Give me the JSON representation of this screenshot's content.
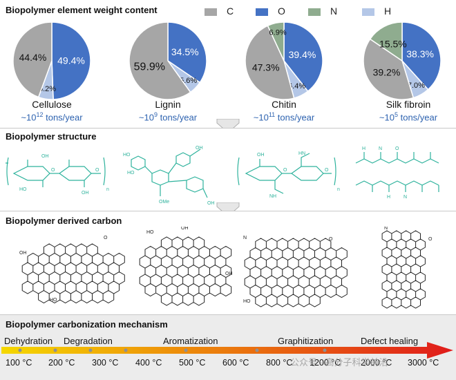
{
  "panel1": {
    "title": "Biopolymer element weight content",
    "legend": [
      {
        "label": "C",
        "color": "#a6a6a6"
      },
      {
        "label": "O",
        "color": "#4472c4"
      },
      {
        "label": "N",
        "color": "#8fac8f"
      },
      {
        "label": "H",
        "color": "#b4c7e7"
      }
    ]
  },
  "chart_data": {
    "type": "pie",
    "title": "Biopolymer element weight content",
    "legend": [
      "C",
      "O",
      "N",
      "H"
    ],
    "charts": [
      {
        "name": "Cellulose",
        "rate_prefix": "~10",
        "rate_exp": "12",
        "rate_suffix": " tons/year",
        "slices": [
          {
            "label": "O",
            "value": 49.4,
            "text": "49.4%"
          },
          {
            "label": "H",
            "value": 6.2,
            "text": "6.2%"
          },
          {
            "label": "C",
            "value": 44.4,
            "text": "44.4%"
          }
        ]
      },
      {
        "name": "Lignin",
        "rate_prefix": "~10",
        "rate_exp": "9",
        "rate_suffix": " tons/year",
        "slices": [
          {
            "label": "O",
            "value": 34.5,
            "text": "34.5%"
          },
          {
            "label": "H",
            "value": 5.6,
            "text": "5.6%"
          },
          {
            "label": "C",
            "value": 59.9,
            "text": "59.9%"
          }
        ]
      },
      {
        "name": "Chitin",
        "rate_prefix": "~10",
        "rate_exp": "11",
        "rate_suffix": " tons/year",
        "slices": [
          {
            "label": "O",
            "value": 39.4,
            "text": "39.4%"
          },
          {
            "label": "H",
            "value": 6.4,
            "text": "6.4%"
          },
          {
            "label": "C",
            "value": 47.3,
            "text": "47.3%"
          },
          {
            "label": "N",
            "value": 6.9,
            "text": "6.9%"
          }
        ]
      },
      {
        "name": "Silk fibroin",
        "rate_prefix": "~10",
        "rate_exp": "5",
        "rate_suffix": " tons/year",
        "slices": [
          {
            "label": "O",
            "value": 38.3,
            "text": "38.3%"
          },
          {
            "label": "H",
            "value": 7.0,
            "text": "7.0%"
          },
          {
            "label": "C",
            "value": 39.2,
            "text": "39.2%"
          },
          {
            "label": "N",
            "value": 15.5,
            "text": "15.5%"
          }
        ]
      }
    ]
  },
  "panel2": {
    "title": "Biopolymer structure",
    "structures": [
      {
        "name": "cellulose-structure",
        "subscript": "n",
        "atoms": [
          "OH",
          "O",
          "HO",
          "O",
          "OH"
        ]
      },
      {
        "name": "lignin-structure",
        "subscript": "",
        "atoms": [
          "OH",
          "HO",
          "OMe",
          "OH",
          "HO"
        ]
      },
      {
        "name": "chitin-structure",
        "subscript": "n",
        "atoms": [
          "HN",
          "O",
          "NH",
          "O",
          "OH"
        ]
      },
      {
        "name": "silk-fibroin-structure",
        "subscript": "",
        "atoms": [
          "H",
          "N",
          "O",
          "H",
          "N"
        ]
      }
    ]
  },
  "panel3": {
    "title": "Biopolymer derived carbon",
    "labels": [
      "OH",
      "HO",
      "O",
      "OH",
      "HO",
      "OH",
      "N",
      "O",
      "HO",
      "N",
      "O"
    ]
  },
  "panel4": {
    "title": "Biopolymer carbonization mechanism",
    "stages": [
      "Dehydration",
      "Degradation",
      "Aromatization",
      "Graphitization",
      "Defect healing"
    ],
    "temperatures": [
      "100 °C",
      "200 °C",
      "300 °C",
      "400 °C",
      "500 °C",
      "600 °C",
      "800 °C",
      "1200 °C",
      "2000 °C",
      "3000 °C"
    ],
    "watermark": "公众号 · 高分子科学前沿",
    "arrow_colors": [
      "#f5d800",
      "#e01b1b"
    ]
  }
}
